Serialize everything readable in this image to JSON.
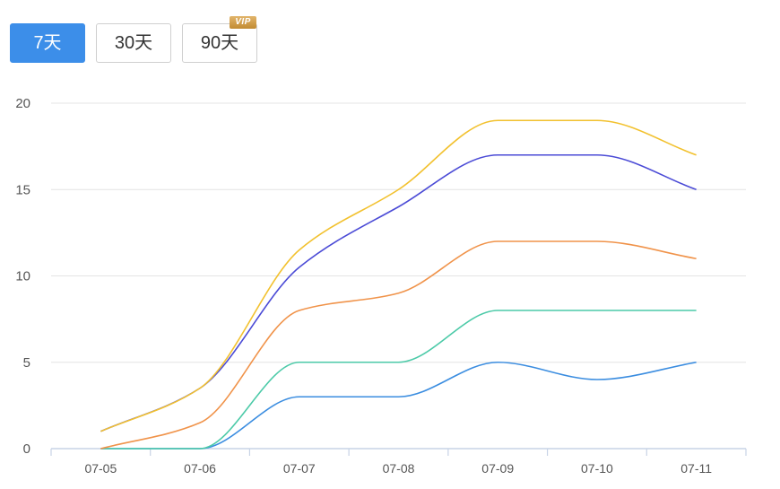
{
  "tabs": [
    {
      "label": "7天",
      "active": true
    },
    {
      "label": "30天",
      "active": false
    },
    {
      "label": "90天",
      "active": false,
      "badge": "VIP"
    }
  ],
  "chart_data": {
    "type": "line",
    "title": "",
    "xlabel": "",
    "ylabel": "",
    "categories": [
      "07-05",
      "07-06",
      "07-07",
      "07-08",
      "07-09",
      "07-10",
      "07-11"
    ],
    "ylim": [
      0,
      20
    ],
    "yticks": [
      "0",
      "5",
      "10",
      "15",
      "20"
    ],
    "grid": true,
    "legend": "none",
    "series": [
      {
        "color": "#f2c12e",
        "values": [
          1,
          3.5,
          11.5,
          15,
          19,
          19,
          17
        ]
      },
      {
        "color": "#4b4bd6",
        "values": [
          1,
          3.5,
          10.5,
          14,
          17,
          17,
          15
        ]
      },
      {
        "color": "#f0934a",
        "values": [
          0,
          1.5,
          8,
          9,
          12,
          12,
          11
        ]
      },
      {
        "color": "#4ccaa8",
        "values": [
          0,
          0,
          5,
          5,
          8,
          8,
          8
        ]
      },
      {
        "color": "#3b8de0",
        "values": [
          0,
          0,
          3,
          3,
          5,
          4,
          5
        ]
      }
    ]
  }
}
